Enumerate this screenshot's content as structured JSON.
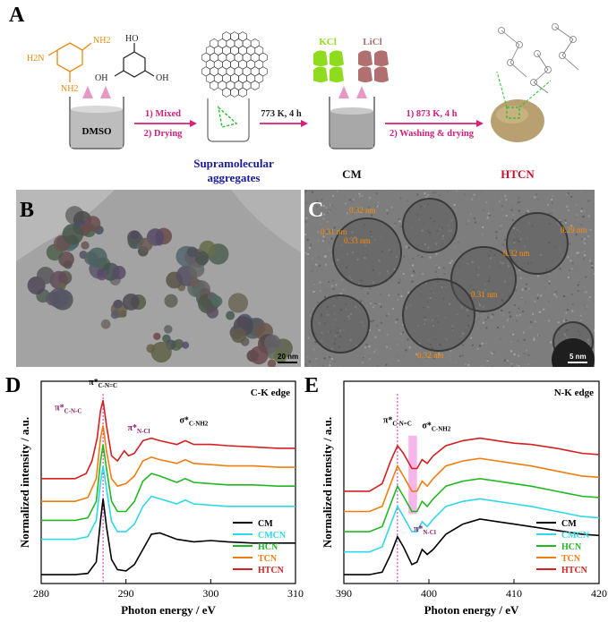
{
  "panel_labels": {
    "a": "A",
    "b": "B",
    "c": "C",
    "d": "D",
    "e": "E"
  },
  "scheme": {
    "nh2_labels": [
      "NH2",
      "H2N",
      "NH2"
    ],
    "oh_labels": [
      "HO",
      "OH",
      "OH"
    ],
    "dmso": "DMSO",
    "step1_line1": "1) Mixed",
    "step1_line2": "2) Drying",
    "step2": "773 K, 4 h",
    "step3_line1": "1) 873 K, 4 h",
    "step3_line2": "2) Washing & drying",
    "salt1": "KCl",
    "salt2": "LiCl",
    "supramolecular": "Supramolecular aggregates",
    "cm": "CM",
    "htcn": "HTCN",
    "colors": {
      "arrow": "#d4207a",
      "supra": "#1a1aa0",
      "htcn": "#c8102e",
      "kcl": "#8fdc1e",
      "licl": "#b07070",
      "melamine": "#e88a10"
    }
  },
  "tem_b": {
    "scale": "20 nm"
  },
  "tem_c": {
    "scale": "5 nm",
    "spacings": [
      "0.32 nm",
      "0.31 nm",
      "0.33 nm",
      "0.32 nm",
      "0.29 nm",
      "0.31 nm",
      "0.32 nm"
    ]
  },
  "chart_data": [
    {
      "type": "line",
      "title": "C-K edge",
      "xlabel": "Photon energy / eV",
      "ylabel": "Normalized intensity / a.u.",
      "xlim": [
        280,
        310
      ],
      "xticks": [
        280,
        290,
        300,
        310
      ],
      "annotations": [
        {
          "text": "π*",
          "sub": "C-N=C",
          "x": 287.3
        },
        {
          "text": "π*",
          "sub": "C-N-C",
          "x": 285.0
        },
        {
          "text": "π*",
          "sub": "N-Cl",
          "x": 290.0
        },
        {
          "text": "σ*",
          "sub": "C-NH2",
          "x": 298.0
        }
      ],
      "vline_x": 287.3,
      "legend_position": "bottom-right",
      "series": [
        {
          "name": "CM",
          "color": "#000000",
          "offset": 0.0,
          "points": [
            [
              280,
              0.02
            ],
            [
              284,
              0.02
            ],
            [
              285.5,
              0.03
            ],
            [
              286.5,
              0.12
            ],
            [
              287.0,
              0.45
            ],
            [
              287.3,
              0.62
            ],
            [
              287.7,
              0.4
            ],
            [
              288.3,
              0.14
            ],
            [
              289,
              0.06
            ],
            [
              290,
              0.05
            ],
            [
              291,
              0.1
            ],
            [
              292,
              0.22
            ],
            [
              293,
              0.34
            ],
            [
              294,
              0.35
            ],
            [
              296,
              0.3
            ],
            [
              298,
              0.28
            ],
            [
              300,
              0.29
            ],
            [
              302,
              0.28
            ],
            [
              305,
              0.27
            ],
            [
              308,
              0.27
            ],
            [
              310,
              0.27
            ]
          ]
        },
        {
          "name": "CMCN",
          "color": "#2ed8e8",
          "offset": 0.0,
          "points": [
            [
              280,
              0.3
            ],
            [
              284,
              0.3
            ],
            [
              285.5,
              0.32
            ],
            [
              286.5,
              0.45
            ],
            [
              287.0,
              0.75
            ],
            [
              287.3,
              0.88
            ],
            [
              287.7,
              0.7
            ],
            [
              288.3,
              0.44
            ],
            [
              289,
              0.36
            ],
            [
              290,
              0.36
            ],
            [
              291,
              0.42
            ],
            [
              292,
              0.56
            ],
            [
              293,
              0.64
            ],
            [
              294,
              0.62
            ],
            [
              296,
              0.58
            ],
            [
              297,
              0.61
            ],
            [
              298,
              0.58
            ],
            [
              300,
              0.57
            ],
            [
              302,
              0.56
            ],
            [
              305,
              0.56
            ],
            [
              308,
              0.56
            ],
            [
              310,
              0.56
            ]
          ]
        },
        {
          "name": "HCN",
          "color": "#22b822",
          "offset": 0.0,
          "points": [
            [
              280,
              0.45
            ],
            [
              284,
              0.45
            ],
            [
              285.5,
              0.47
            ],
            [
              286.5,
              0.6
            ],
            [
              287.0,
              0.92
            ],
            [
              287.3,
              1.05
            ],
            [
              287.7,
              0.86
            ],
            [
              288.3,
              0.6
            ],
            [
              289,
              0.52
            ],
            [
              290,
              0.52
            ],
            [
              291,
              0.6
            ],
            [
              292,
              0.76
            ],
            [
              293,
              0.82
            ],
            [
              294,
              0.8
            ],
            [
              296,
              0.75
            ],
            [
              297,
              0.78
            ],
            [
              298,
              0.75
            ],
            [
              300,
              0.74
            ],
            [
              302,
              0.73
            ],
            [
              305,
              0.73
            ],
            [
              308,
              0.72
            ],
            [
              310,
              0.72
            ]
          ]
        },
        {
          "name": "TCN",
          "color": "#f07d10",
          "offset": 0.0,
          "points": [
            [
              280,
              0.6
            ],
            [
              284,
              0.6
            ],
            [
              285.5,
              0.63
            ],
            [
              286.5,
              0.78
            ],
            [
              287.0,
              1.1
            ],
            [
              287.3,
              1.2
            ],
            [
              287.7,
              1.0
            ],
            [
              288.3,
              0.78
            ],
            [
              289,
              0.72
            ],
            [
              290,
              0.74
            ],
            [
              291,
              0.8
            ],
            [
              292,
              0.92
            ],
            [
              293,
              0.95
            ],
            [
              294,
              0.93
            ],
            [
              296,
              0.9
            ],
            [
              297,
              0.93
            ],
            [
              298,
              0.9
            ],
            [
              300,
              0.89
            ],
            [
              302,
              0.88
            ],
            [
              305,
              0.88
            ],
            [
              308,
              0.87
            ],
            [
              310,
              0.87
            ]
          ]
        },
        {
          "name": "HTCN",
          "color": "#d42020",
          "offset": 0.0,
          "points": [
            [
              280,
              0.78
            ],
            [
              284,
              0.78
            ],
            [
              285.3,
              0.82
            ],
            [
              286,
              0.92
            ],
            [
              286.6,
              1.1
            ],
            [
              287.0,
              1.32
            ],
            [
              287.3,
              1.4
            ],
            [
              287.7,
              1.2
            ],
            [
              288.3,
              0.96
            ],
            [
              289,
              0.92
            ],
            [
              289.8,
              1.0
            ],
            [
              290.3,
              0.96
            ],
            [
              291,
              0.98
            ],
            [
              292,
              1.08
            ],
            [
              293,
              1.1
            ],
            [
              294,
              1.08
            ],
            [
              296,
              1.05
            ],
            [
              297,
              1.08
            ],
            [
              298,
              1.05
            ],
            [
              300,
              1.05
            ],
            [
              302,
              1.04
            ],
            [
              305,
              1.03
            ],
            [
              308,
              1.02
            ],
            [
              310,
              1.02
            ]
          ]
        }
      ]
    },
    {
      "type": "line",
      "title": "N-K edge",
      "xlabel": "Photon energy / eV",
      "ylabel": "Normalized intensity / a.u.",
      "xlim": [
        390,
        420
      ],
      "xticks": [
        390,
        400,
        410,
        420
      ],
      "annotations": [
        {
          "text": "π*",
          "sub": "C-N=C",
          "x": 396.3
        },
        {
          "text": "σ*",
          "sub": "C-NH2",
          "x": 399.0
        },
        {
          "text": "π*",
          "sub": "N-Cl",
          "x": 398.0
        }
      ],
      "vline_x": 396.3,
      "shaded_band": [
        397.6,
        398.6
      ],
      "legend_position": "bottom-right",
      "series": [
        {
          "name": "CM",
          "color": "#000000",
          "offset": 0.0,
          "points": [
            [
              390,
              0.02
            ],
            [
              393,
              0.02
            ],
            [
              394.5,
              0.04
            ],
            [
              395.5,
              0.18
            ],
            [
              396.3,
              0.32
            ],
            [
              397,
              0.24
            ],
            [
              398,
              0.1
            ],
            [
              398.6,
              0.12
            ],
            [
              399.2,
              0.22
            ],
            [
              399.8,
              0.18
            ],
            [
              400.5,
              0.22
            ],
            [
              402,
              0.34
            ],
            [
              404,
              0.42
            ],
            [
              406,
              0.46
            ],
            [
              408,
              0.44
            ],
            [
              410,
              0.42
            ],
            [
              412,
              0.4
            ],
            [
              415,
              0.37
            ],
            [
              418,
              0.34
            ],
            [
              420,
              0.33
            ]
          ]
        },
        {
          "name": "CMCN",
          "color": "#2ed8e8",
          "offset": 0.0,
          "points": [
            [
              390,
              0.2
            ],
            [
              393,
              0.2
            ],
            [
              394.5,
              0.24
            ],
            [
              395.5,
              0.42
            ],
            [
              396.3,
              0.56
            ],
            [
              397,
              0.48
            ],
            [
              398,
              0.36
            ],
            [
              398.6,
              0.36
            ],
            [
              399.2,
              0.44
            ],
            [
              399.8,
              0.4
            ],
            [
              400.5,
              0.46
            ],
            [
              402,
              0.56
            ],
            [
              404,
              0.6
            ],
            [
              406,
              0.62
            ],
            [
              408,
              0.6
            ],
            [
              410,
              0.58
            ],
            [
              412,
              0.56
            ],
            [
              415,
              0.52
            ],
            [
              418,
              0.48
            ],
            [
              420,
              0.47
            ]
          ]
        },
        {
          "name": "HCN",
          "color": "#22b822",
          "offset": 0.0,
          "points": [
            [
              390,
              0.36
            ],
            [
              393,
              0.36
            ],
            [
              394.5,
              0.4
            ],
            [
              395.5,
              0.58
            ],
            [
              396.3,
              0.72
            ],
            [
              397,
              0.64
            ],
            [
              398,
              0.52
            ],
            [
              398.6,
              0.52
            ],
            [
              399.2,
              0.6
            ],
            [
              399.8,
              0.56
            ],
            [
              400.5,
              0.62
            ],
            [
              402,
              0.72
            ],
            [
              404,
              0.76
            ],
            [
              406,
              0.78
            ],
            [
              408,
              0.76
            ],
            [
              410,
              0.74
            ],
            [
              412,
              0.72
            ],
            [
              415,
              0.68
            ],
            [
              418,
              0.64
            ],
            [
              420,
              0.63
            ]
          ]
        },
        {
          "name": "TCN",
          "color": "#f07d10",
          "offset": 0.0,
          "points": [
            [
              390,
              0.52
            ],
            [
              393,
              0.52
            ],
            [
              394.5,
              0.56
            ],
            [
              395.5,
              0.74
            ],
            [
              396.3,
              0.88
            ],
            [
              397,
              0.8
            ],
            [
              398,
              0.68
            ],
            [
              398.6,
              0.68
            ],
            [
              399.2,
              0.76
            ],
            [
              399.8,
              0.72
            ],
            [
              400.5,
              0.78
            ],
            [
              402,
              0.88
            ],
            [
              404,
              0.92
            ],
            [
              406,
              0.94
            ],
            [
              408,
              0.92
            ],
            [
              410,
              0.9
            ],
            [
              412,
              0.88
            ],
            [
              415,
              0.84
            ],
            [
              418,
              0.8
            ],
            [
              420,
              0.79
            ]
          ]
        },
        {
          "name": "HTCN",
          "color": "#d42020",
          "offset": 0.0,
          "points": [
            [
              390,
              0.68
            ],
            [
              393,
              0.68
            ],
            [
              394.5,
              0.74
            ],
            [
              395.5,
              0.92
            ],
            [
              396.3,
              1.04
            ],
            [
              397,
              0.98
            ],
            [
              398,
              0.86
            ],
            [
              398.6,
              0.86
            ],
            [
              399.2,
              0.93
            ],
            [
              399.8,
              0.9
            ],
            [
              400.5,
              0.96
            ],
            [
              402,
              1.04
            ],
            [
              404,
              1.08
            ],
            [
              406,
              1.1
            ],
            [
              408,
              1.08
            ],
            [
              410,
              1.06
            ],
            [
              412,
              1.05
            ],
            [
              415,
              1.02
            ],
            [
              418,
              0.98
            ],
            [
              420,
              0.97
            ]
          ]
        }
      ]
    }
  ]
}
